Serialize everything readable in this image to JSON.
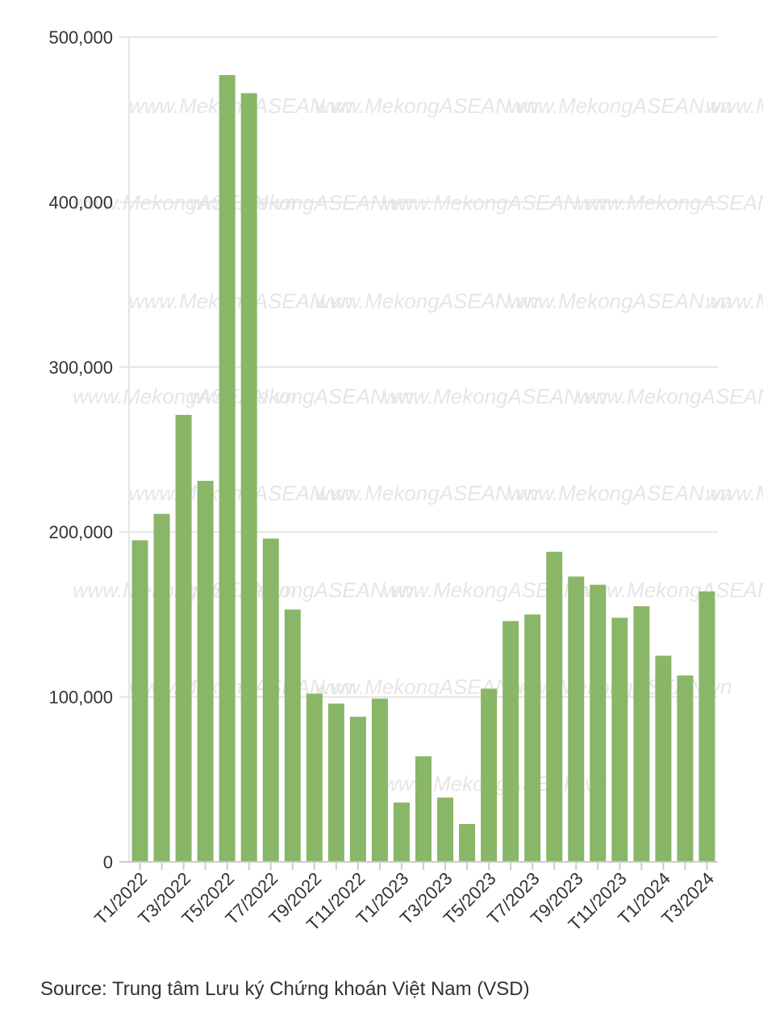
{
  "chart_data": {
    "type": "bar",
    "title": "",
    "xlabel": "",
    "ylabel": "",
    "ylim": [
      0,
      500000
    ],
    "yticks": [
      0,
      100000,
      200000,
      300000,
      400000,
      500000
    ],
    "ytick_labels": [
      "0",
      "100,000",
      "200,000",
      "300,000",
      "400,000",
      "500,000"
    ],
    "grid": true,
    "bar_color": "#8ab667",
    "categories": [
      "T1/2022",
      "T2/2022",
      "T3/2022",
      "T4/2022",
      "T5/2022",
      "T6/2022",
      "T7/2022",
      "T8/2022",
      "T9/2022",
      "T10/2022",
      "T11/2022",
      "T12/2022",
      "T1/2023",
      "T2/2023",
      "T3/2023",
      "T4/2023",
      "T5/2023",
      "T6/2023",
      "T7/2023",
      "T8/2023",
      "T9/2023",
      "T10/2023",
      "T11/2023",
      "T12/2023",
      "T1/2024",
      "T2/2024",
      "T3/2024"
    ],
    "values": [
      195000,
      211000,
      271000,
      231000,
      477000,
      466000,
      196000,
      153000,
      102000,
      96000,
      88000,
      99000,
      36000,
      64000,
      39000,
      23000,
      105000,
      146000,
      150000,
      188000,
      173000,
      168000,
      148000,
      155000,
      125000,
      113000,
      164000
    ],
    "shown_labels": [
      "T1/2022",
      "T3/2022",
      "T5/2022",
      "T7/2022",
      "T9/2022",
      "T11/2022",
      "T1/2023",
      "T3/2023",
      "T5/2023",
      "T7/2023",
      "T9/2023",
      "T11/2023",
      "T1/2024",
      "T3/2024"
    ],
    "watermark": "www.MekongASEAN.vn"
  },
  "source": "Source: Trung tâm Lưu ký Chứng khoán Việt Nam (VSD)"
}
